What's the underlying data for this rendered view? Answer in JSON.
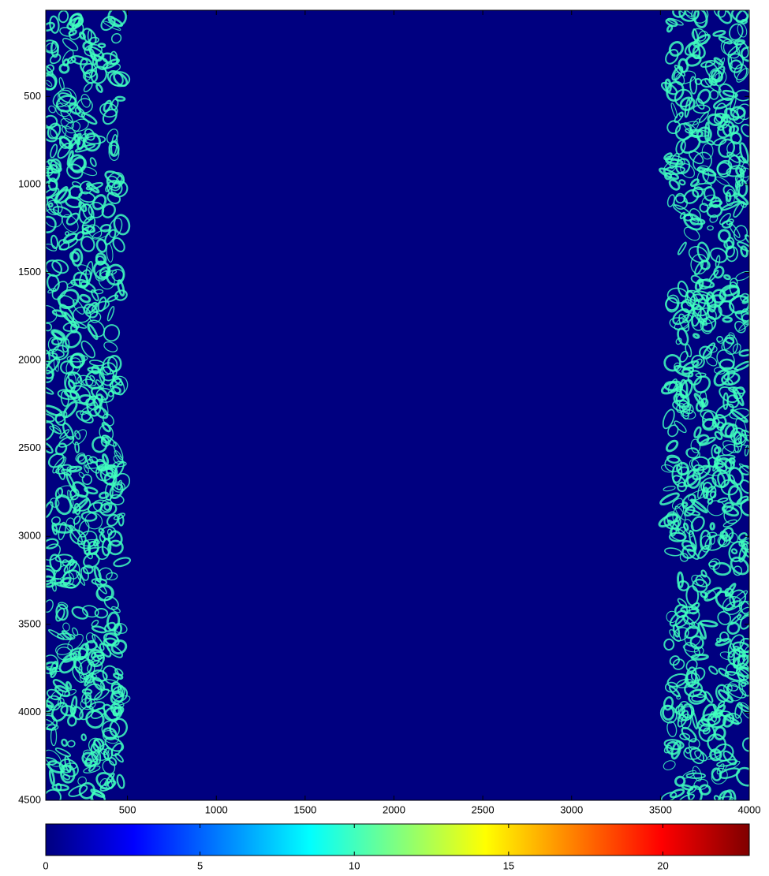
{
  "chart_data": {
    "type": "image",
    "colormap": "jet",
    "background_value": 0,
    "bands": [
      {
        "x": [
          40,
          470
        ],
        "value": 10
      },
      {
        "x": [
          3540,
          4000
        ],
        "value": 10
      }
    ],
    "xlim": [
      40,
      4000
    ],
    "xticks": [
      500,
      1000,
      1500,
      2000,
      2500,
      3000,
      3500,
      4000
    ],
    "ylim": [
      10,
      4500
    ],
    "yticks": [
      500,
      1000,
      1500,
      2000,
      2500,
      3000,
      3500,
      4000,
      4500
    ],
    "y_reversed": true,
    "clim": [
      0,
      22.8
    ],
    "cticks": [
      0,
      5,
      10,
      15,
      20
    ]
  }
}
